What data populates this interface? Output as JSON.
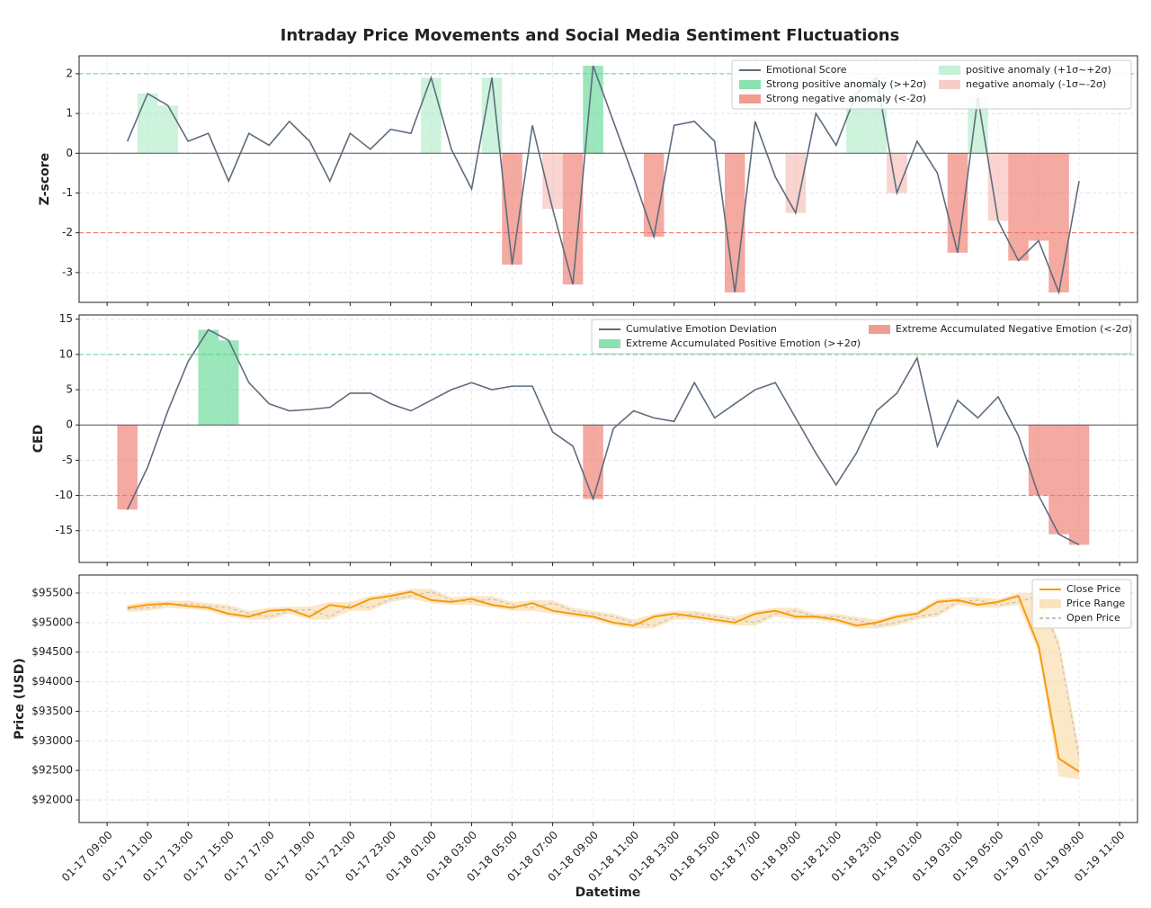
{
  "title": "Intraday Price Movements and Social Media Sentiment Fluctuations",
  "x_label": "Datetime",
  "xlim": [
    "01-17 07:37",
    "01-19 11:53"
  ],
  "xticks": [
    "01-17 09:00",
    "01-17 11:00",
    "01-17 13:00",
    "01-17 15:00",
    "01-17 17:00",
    "01-17 19:00",
    "01-17 21:00",
    "01-17 23:00",
    "01-18 01:00",
    "01-18 03:00",
    "01-18 05:00",
    "01-18 07:00",
    "01-18 09:00",
    "01-18 11:00",
    "01-18 13:00",
    "01-18 15:00",
    "01-18 17:00",
    "01-18 19:00",
    "01-18 21:00",
    "01-18 23:00",
    "01-19 01:00",
    "01-19 03:00",
    "01-19 05:00",
    "01-19 07:00",
    "01-19 09:00",
    "01-19 11:00"
  ],
  "x": [
    "01-17 10:00",
    "01-17 11:00",
    "01-17 12:00",
    "01-17 13:00",
    "01-17 14:00",
    "01-17 15:00",
    "01-17 16:00",
    "01-17 17:00",
    "01-17 18:00",
    "01-17 19:00",
    "01-17 20:00",
    "01-17 21:00",
    "01-17 22:00",
    "01-17 23:00",
    "01-18 00:00",
    "01-18 01:00",
    "01-18 02:00",
    "01-18 03:00",
    "01-18 04:00",
    "01-18 05:00",
    "01-18 06:00",
    "01-18 07:00",
    "01-18 08:00",
    "01-18 09:00",
    "01-18 10:00",
    "01-18 11:00",
    "01-18 12:00",
    "01-18 13:00",
    "01-18 14:00",
    "01-18 15:00",
    "01-18 16:00",
    "01-18 17:00",
    "01-18 18:00",
    "01-18 19:00",
    "01-18 20:00",
    "01-18 21:00",
    "01-18 22:00",
    "01-18 23:00",
    "01-19 00:00",
    "01-19 01:00",
    "01-19 02:00",
    "01-19 03:00",
    "01-19 04:00",
    "01-19 05:00",
    "01-19 06:00",
    "01-19 07:00",
    "01-19 08:00",
    "01-19 09:00"
  ],
  "chart_data": [
    {
      "type": "line",
      "y_label": "Z-score",
      "ylim": [
        -3.75,
        2.45
      ],
      "yticks": [
        -3,
        -2,
        -1,
        0,
        1,
        2
      ],
      "grid": true,
      "legend": "upper right",
      "series": [
        {
          "name": "Emotional Score",
          "color": "#5d6d7e",
          "values": [
            0.3,
            1.5,
            1.2,
            0.3,
            0.5,
            -0.7,
            0.5,
            0.2,
            0.8,
            0.3,
            -0.7,
            0.5,
            0.1,
            0.6,
            0.5,
            1.9,
            0.1,
            -0.9,
            1.9,
            -2.8,
            0.7,
            -1.4,
            -3.3,
            2.2,
            0.8,
            -0.6,
            -2.1,
            0.7,
            0.8,
            0.3,
            -3.5,
            0.8,
            -0.6,
            -1.5,
            1.0,
            0.2,
            1.5,
            1.9,
            -1.0,
            0.3,
            -0.5,
            -2.5,
            1.4,
            -1.7,
            -2.7,
            -2.2,
            -3.5,
            -0.7
          ]
        }
      ],
      "anomalies": [
        {
          "name": "Strong positive anomaly (>+2σ)",
          "color": "#58d68d",
          "min": 2
        },
        {
          "name": "Strong negative anomaly (<-2σ)",
          "color": "#ec7063",
          "max": -2
        },
        {
          "name": "positive anomaly (+1σ~+2σ)",
          "color": "#abebc6",
          "min": 1,
          "max": 2
        },
        {
          "name": "negative anomaly (-1σ~-2σ)",
          "color": "#f5b7b1",
          "min": -2,
          "max": -1
        }
      ],
      "reference_lines": [
        {
          "value": 2,
          "color": "#58d68d"
        },
        {
          "value": -2,
          "color": "#ec7063"
        }
      ]
    },
    {
      "type": "line",
      "y_label": "CED",
      "ylim": [
        -19.5,
        15.6
      ],
      "yticks": [
        -15,
        -10,
        -5,
        0,
        5,
        10,
        15
      ],
      "grid": true,
      "legend": "upper right",
      "series": [
        {
          "name": "Cumulative Emotion Deviation",
          "color": "#5d6d7e",
          "values": [
            -12,
            -6,
            2,
            9,
            13.5,
            12,
            6,
            3,
            2,
            2.2,
            2.5,
            4.5,
            4.5,
            3,
            2,
            3.5,
            5,
            6,
            5,
            5.5,
            5.5,
            -1,
            -3,
            -10.5,
            -0.5,
            2,
            1,
            0.5,
            6,
            1,
            3,
            5,
            6,
            1,
            -4,
            -8.5,
            -4,
            2,
            4.5,
            9.5,
            -3,
            3.5,
            1,
            4,
            -1.5,
            -10,
            -15.5,
            -17
          ]
        }
      ],
      "anomalies": [
        {
          "name": "Extreme Accumulated Positive Emotion (>+2σ)",
          "color": "#58d68d",
          "min": 10
        },
        {
          "name": "Extreme Accumulated Negative Emotion (<-2σ)",
          "color": "#ec7063",
          "max": -10
        }
      ],
      "reference_lines": [
        {
          "value": 10,
          "color": "#58d68d"
        },
        {
          "value": -10,
          "color": "#ec7063"
        }
      ]
    },
    {
      "type": "price",
      "y_label": "Price (USD)",
      "ylim": [
        91620,
        95804
      ],
      "grid": true,
      "legend": "upper right",
      "yticks": [
        {
          "value": 92000,
          "label": "$92000"
        },
        {
          "value": 92500,
          "label": "$92500"
        },
        {
          "value": 93000,
          "label": "$93000"
        },
        {
          "value": 93500,
          "label": "$93500"
        },
        {
          "value": 94000,
          "label": "$94000"
        },
        {
          "value": 94500,
          "label": "$94500"
        },
        {
          "value": 95000,
          "label": "$95000"
        },
        {
          "value": 95500,
          "label": "$95500"
        }
      ],
      "series": [
        {
          "name": "Close Price",
          "color": "#f39c12",
          "values": [
            95250,
            95300,
            95320,
            95280,
            95250,
            95150,
            95100,
            95200,
            95220,
            95100,
            95300,
            95250,
            95400,
            95450,
            95520,
            95380,
            95350,
            95400,
            95300,
            95250,
            95330,
            95200,
            95150,
            95100,
            95000,
            94950,
            95100,
            95150,
            95100,
            95050,
            95000,
            95150,
            95200,
            95100,
            95100,
            95050,
            94950,
            95000,
            95100,
            95150,
            95350,
            95380,
            95300,
            95350,
            95450,
            94600,
            92700,
            92480
          ]
        },
        {
          "name": "Price Range",
          "color": "#fad7a0",
          "high": [
            95300,
            95350,
            95370,
            95370,
            95330,
            95300,
            95200,
            95250,
            95270,
            95270,
            95350,
            95350,
            95450,
            95500,
            95570,
            95570,
            95430,
            95450,
            95450,
            95350,
            95380,
            95380,
            95250,
            95200,
            95150,
            95050,
            95150,
            95200,
            95200,
            95150,
            95100,
            95200,
            95250,
            95250,
            95150,
            95150,
            95100,
            95050,
            95150,
            95200,
            95400,
            95430,
            95430,
            95400,
            95500,
            95500,
            94700,
            92900
          ],
          "low": [
            95180,
            95200,
            95250,
            95230,
            95200,
            95100,
            95050,
            95050,
            95150,
            95050,
            95050,
            95200,
            95200,
            95350,
            95400,
            95330,
            95300,
            95300,
            95250,
            95200,
            95200,
            95150,
            95100,
            95050,
            94950,
            94900,
            94900,
            95050,
            95050,
            95000,
            94950,
            94950,
            95100,
            95050,
            95050,
            95000,
            94900,
            94900,
            94950,
            95050,
            95100,
            95300,
            95250,
            95250,
            95300,
            94500,
            92400,
            92350
          ]
        },
        {
          "name": "Open Price",
          "color": "#bdc3c7",
          "values": [
            95230,
            95250,
            95300,
            95320,
            95280,
            95250,
            95150,
            95100,
            95200,
            95220,
            95100,
            95300,
            95250,
            95400,
            95450,
            95520,
            95380,
            95350,
            95400,
            95300,
            95250,
            95330,
            95200,
            95150,
            95100,
            95000,
            94950,
            95100,
            95150,
            95100,
            95050,
            95000,
            95150,
            95200,
            95100,
            95100,
            95050,
            94950,
            95000,
            95100,
            95150,
            95350,
            95380,
            95300,
            95350,
            95450,
            94600,
            92700
          ]
        }
      ]
    }
  ]
}
